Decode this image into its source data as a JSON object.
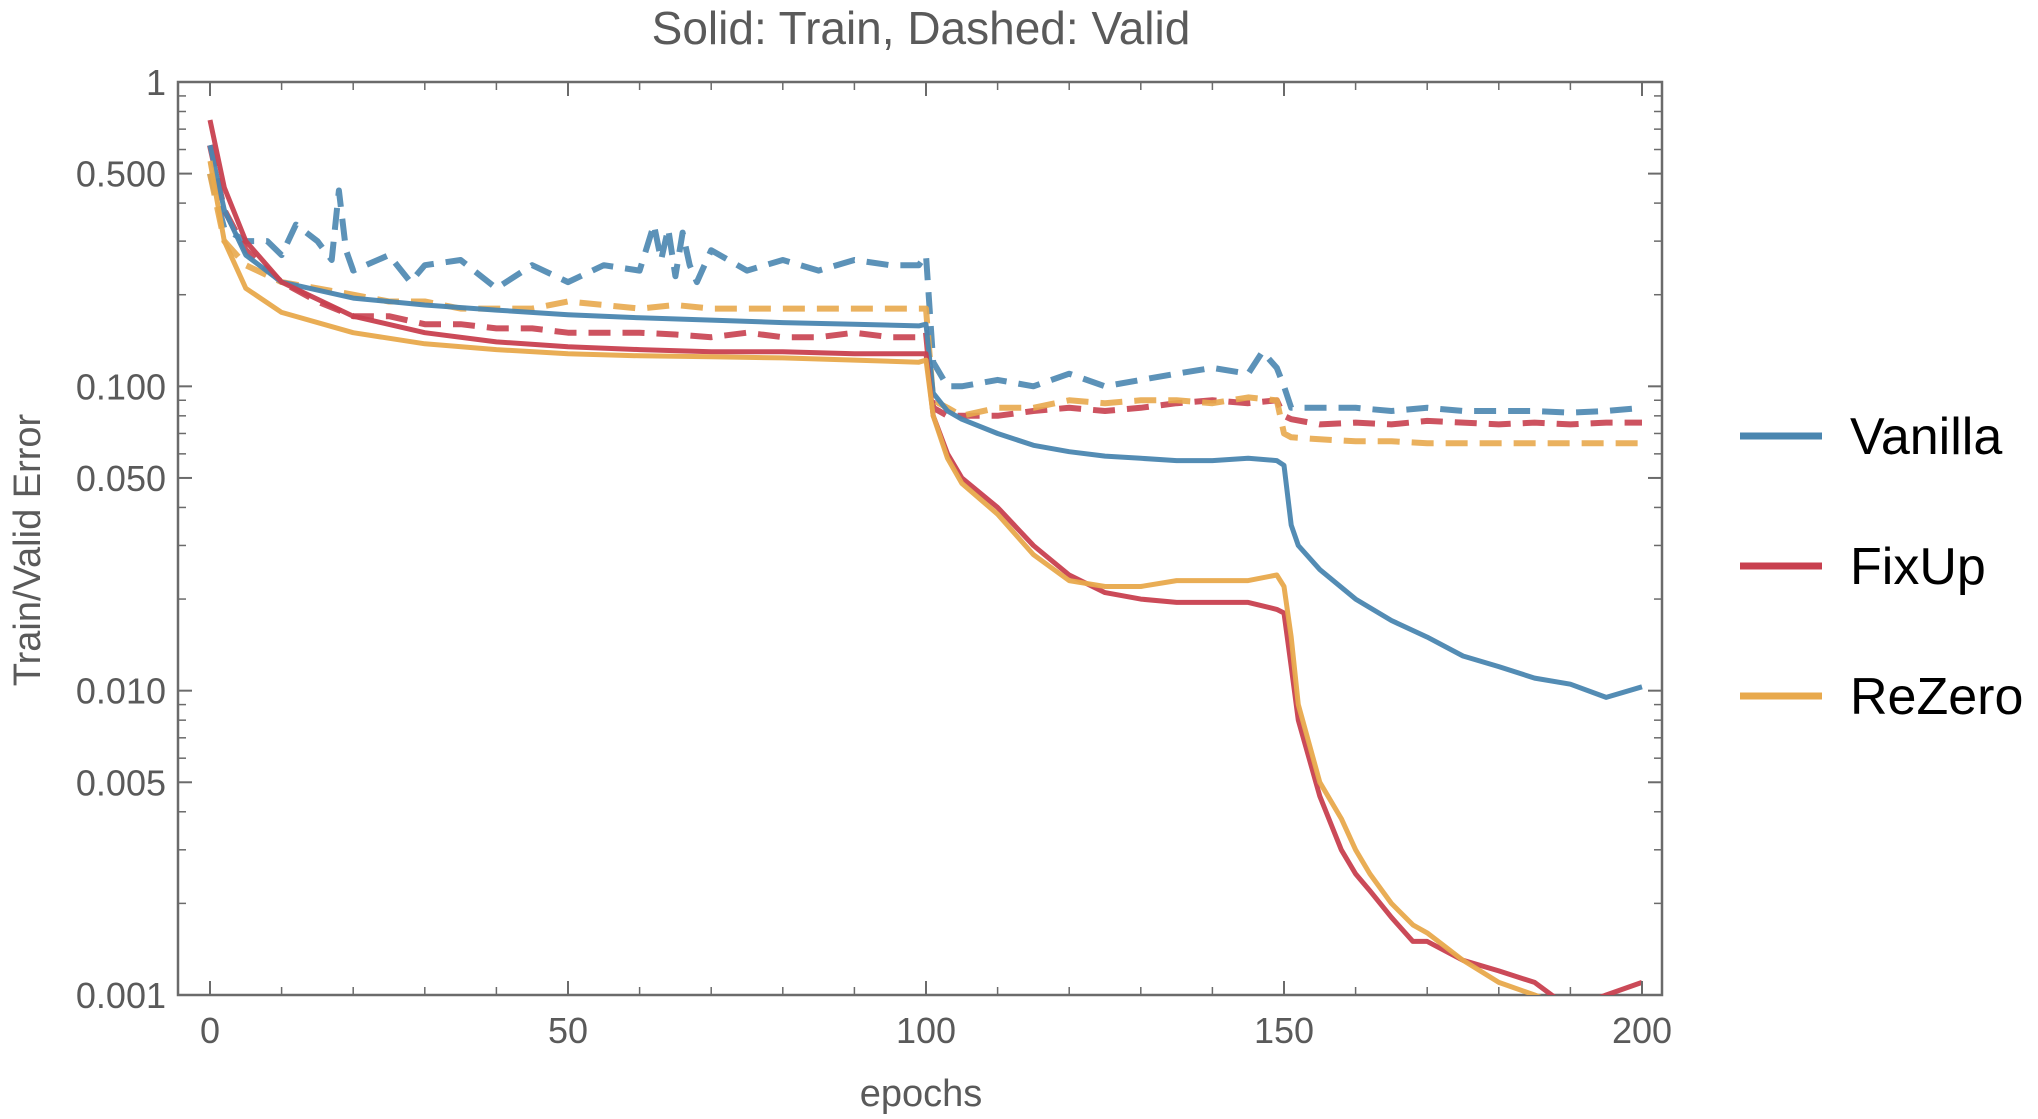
{
  "chart_data": {
    "type": "line",
    "title": "Solid: Train, Dashed: Valid",
    "xlabel": "epochs",
    "ylabel": "Train/Valid Error",
    "xlim": [
      0,
      203
    ],
    "ylim": [
      0.001,
      1
    ],
    "y_scale": "log",
    "x_ticks": [
      0,
      50,
      100,
      150,
      200
    ],
    "x_tick_labels": [
      "0",
      "50",
      "100",
      "150",
      "200"
    ],
    "y_ticks": [
      0.001,
      0.005,
      0.01,
      0.05,
      0.1,
      0.5,
      1
    ],
    "y_tick_labels": [
      "0.001",
      "0.005",
      "0.010",
      "0.050",
      "0.100",
      "0.500",
      "1"
    ],
    "grid": false,
    "legend_position": "right",
    "line_style_note": "Solid: Train, Dashed: Valid",
    "series": [
      {
        "name": "Vanilla",
        "color": "#4a86b0",
        "train": {
          "x": [
            0,
            2,
            5,
            10,
            20,
            30,
            40,
            50,
            60,
            70,
            80,
            90,
            99,
            100,
            101,
            103,
            105,
            110,
            115,
            120,
            125,
            130,
            135,
            140,
            145,
            149,
            150,
            151,
            152,
            155,
            160,
            165,
            170,
            175,
            180,
            185,
            190,
            195,
            200
          ],
          "y": [
            0.62,
            0.38,
            0.27,
            0.22,
            0.195,
            0.185,
            0.178,
            0.172,
            0.168,
            0.165,
            0.162,
            0.16,
            0.158,
            0.16,
            0.095,
            0.083,
            0.078,
            0.07,
            0.064,
            0.061,
            0.059,
            0.058,
            0.057,
            0.057,
            0.058,
            0.057,
            0.055,
            0.035,
            0.03,
            0.025,
            0.02,
            0.017,
            0.015,
            0.013,
            0.012,
            0.011,
            0.0105,
            0.0095,
            0.0103
          ]
        },
        "valid": {
          "x": [
            0,
            2,
            5,
            8,
            10,
            12,
            15,
            17,
            18,
            19,
            20,
            25,
            28,
            30,
            35,
            40,
            45,
            50,
            55,
            60,
            62,
            63,
            64,
            65,
            66,
            67,
            68,
            70,
            75,
            80,
            85,
            90,
            95,
            99,
            100,
            101,
            103,
            105,
            110,
            115,
            120,
            125,
            130,
            135,
            140,
            145,
            147,
            149,
            150,
            151,
            155,
            160,
            165,
            170,
            175,
            180,
            185,
            190,
            195,
            200
          ],
          "y": [
            0.5,
            0.33,
            0.3,
            0.3,
            0.27,
            0.34,
            0.3,
            0.26,
            0.44,
            0.28,
            0.24,
            0.27,
            0.22,
            0.25,
            0.26,
            0.21,
            0.25,
            0.22,
            0.25,
            0.24,
            0.34,
            0.26,
            0.33,
            0.23,
            0.32,
            0.25,
            0.22,
            0.28,
            0.24,
            0.26,
            0.24,
            0.26,
            0.25,
            0.25,
            0.27,
            0.12,
            0.1,
            0.1,
            0.105,
            0.1,
            0.11,
            0.1,
            0.105,
            0.11,
            0.115,
            0.11,
            0.13,
            0.115,
            0.1,
            0.085,
            0.085,
            0.085,
            0.083,
            0.085,
            0.083,
            0.083,
            0.083,
            0.082,
            0.083,
            0.085
          ]
        }
      },
      {
        "name": "FixUp",
        "color": "#c8404f",
        "train": {
          "x": [
            0,
            2,
            5,
            10,
            20,
            30,
            40,
            50,
            60,
            70,
            80,
            90,
            99,
            100,
            101,
            103,
            105,
            110,
            115,
            120,
            125,
            130,
            135,
            140,
            145,
            149,
            150,
            151,
            152,
            155,
            158,
            160,
            162,
            165,
            168,
            170,
            175,
            180,
            185,
            190,
            195,
            200
          ],
          "y": [
            0.75,
            0.45,
            0.3,
            0.22,
            0.17,
            0.15,
            0.14,
            0.135,
            0.132,
            0.13,
            0.13,
            0.128,
            0.128,
            0.128,
            0.08,
            0.06,
            0.05,
            0.04,
            0.03,
            0.024,
            0.021,
            0.02,
            0.0195,
            0.0195,
            0.0195,
            0.0185,
            0.018,
            0.012,
            0.008,
            0.0045,
            0.003,
            0.0025,
            0.0022,
            0.0018,
            0.0015,
            0.0015,
            0.0013,
            0.0012,
            0.0011,
            0.0009,
            0.001,
            0.0011
          ]
        },
        "valid": {
          "x": [
            0,
            2,
            5,
            10,
            15,
            20,
            25,
            30,
            35,
            40,
            45,
            50,
            55,
            60,
            65,
            70,
            75,
            80,
            85,
            90,
            95,
            99,
            100,
            101,
            103,
            105,
            110,
            115,
            120,
            125,
            130,
            135,
            140,
            145,
            149,
            150,
            151,
            155,
            160,
            165,
            170,
            175,
            180,
            185,
            190,
            195,
            200
          ],
          "y": [
            0.62,
            0.38,
            0.28,
            0.22,
            0.19,
            0.17,
            0.17,
            0.16,
            0.16,
            0.155,
            0.155,
            0.15,
            0.15,
            0.15,
            0.148,
            0.145,
            0.15,
            0.145,
            0.145,
            0.15,
            0.145,
            0.145,
            0.15,
            0.085,
            0.08,
            0.08,
            0.08,
            0.083,
            0.085,
            0.083,
            0.085,
            0.088,
            0.09,
            0.088,
            0.09,
            0.08,
            0.078,
            0.075,
            0.076,
            0.075,
            0.077,
            0.076,
            0.075,
            0.076,
            0.075,
            0.076,
            0.076
          ]
        }
      },
      {
        "name": "ReZero",
        "color": "#e8a94c",
        "train": {
          "x": [
            0,
            2,
            5,
            10,
            20,
            30,
            40,
            50,
            60,
            70,
            80,
            90,
            99,
            100,
            101,
            103,
            105,
            110,
            115,
            120,
            125,
            130,
            135,
            140,
            145,
            149,
            150,
            151,
            152,
            155,
            158,
            160,
            162,
            165,
            168,
            170,
            175,
            180,
            185,
            190,
            195,
            200
          ],
          "y": [
            0.55,
            0.3,
            0.21,
            0.175,
            0.15,
            0.138,
            0.132,
            0.128,
            0.126,
            0.125,
            0.124,
            0.122,
            0.12,
            0.122,
            0.08,
            0.058,
            0.048,
            0.038,
            0.028,
            0.023,
            0.022,
            0.022,
            0.023,
            0.023,
            0.023,
            0.024,
            0.022,
            0.015,
            0.009,
            0.005,
            0.0038,
            0.003,
            0.0025,
            0.002,
            0.0017,
            0.0016,
            0.0013,
            0.0011,
            0.001,
            0.0009,
            0.0009,
            0.0009
          ]
        },
        "valid": {
          "x": [
            0,
            2,
            5,
            10,
            15,
            20,
            25,
            30,
            35,
            40,
            45,
            50,
            55,
            60,
            65,
            70,
            75,
            80,
            85,
            90,
            95,
            99,
            100,
            101,
            103,
            105,
            110,
            115,
            120,
            125,
            130,
            135,
            140,
            145,
            149,
            150,
            151,
            155,
            160,
            165,
            170,
            175,
            180,
            185,
            190,
            195,
            200
          ],
          "y": [
            0.5,
            0.3,
            0.25,
            0.22,
            0.21,
            0.2,
            0.19,
            0.19,
            0.18,
            0.18,
            0.18,
            0.19,
            0.185,
            0.18,
            0.185,
            0.18,
            0.18,
            0.18,
            0.18,
            0.18,
            0.18,
            0.18,
            0.18,
            0.09,
            0.085,
            0.08,
            0.085,
            0.085,
            0.09,
            0.088,
            0.09,
            0.09,
            0.088,
            0.092,
            0.09,
            0.07,
            0.068,
            0.067,
            0.066,
            0.066,
            0.065,
            0.065,
            0.065,
            0.065,
            0.065,
            0.065,
            0.065
          ]
        }
      }
    ]
  }
}
